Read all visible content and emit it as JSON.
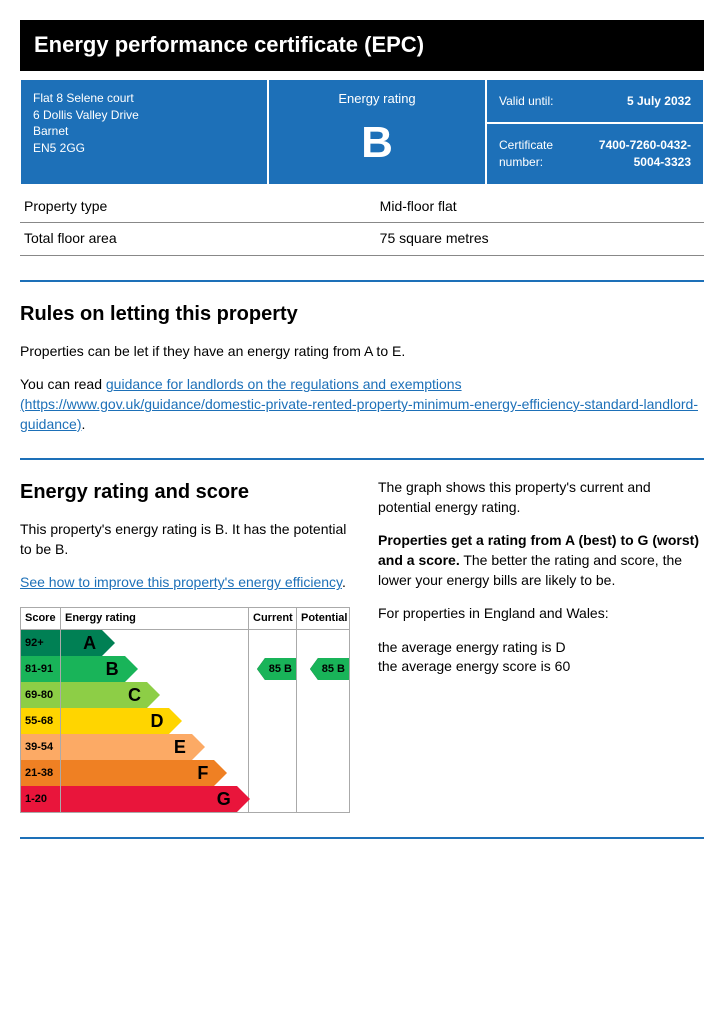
{
  "title": "Energy performance certificate (EPC)",
  "header": {
    "address_lines": [
      "Flat 8 Selene court",
      "6 Dollis Valley Drive",
      "Barnet",
      "EN5 2GG"
    ],
    "rating_label": "Energy rating",
    "rating_letter": "B",
    "valid_label": "Valid until:",
    "valid_value": "5 July 2032",
    "cert_label": "Certificate number:",
    "cert_value": "7400-7260-0432-5004-3323"
  },
  "property": {
    "type_label": "Property type",
    "type_value": "Mid-floor flat",
    "area_label": "Total floor area",
    "area_value": "75 square metres"
  },
  "rules": {
    "heading": "Rules on letting this property",
    "intro": "Properties can be let if they have an energy rating from A to E.",
    "link_prefix": "You can read ",
    "link_text": "guidance for landlords on the regulations and exemptions (https://www.gov.uk/guidance/domestic-private-rented-property-minimum-energy-efficiency-standard-landlord-guidance)",
    "link_suffix": "."
  },
  "rating_section": {
    "heading": "Energy rating and score",
    "summary": "This property's energy rating is B. It has the potential to be B.",
    "improve_link": "See how to improve this property's energy efficiency",
    "improve_suffix": "."
  },
  "side_text": {
    "p1": "The graph shows this property's current and potential energy rating.",
    "p2_bold": "Properties get a rating from A (best) to G (worst) and a score.",
    "p2_rest": " The better the rating and score, the lower your energy bills are likely to be.",
    "p3": "For properties in England and Wales:",
    "p4a": "the average energy rating is D",
    "p4b": "the average energy score is 60"
  },
  "chart": {
    "headers": {
      "score": "Score",
      "rating": "Energy rating",
      "current": "Current",
      "potential": "Potential"
    },
    "rows": [
      {
        "score": "92+",
        "letter": "A",
        "width_pct": 22,
        "color": "#008054",
        "text_color": "#000"
      },
      {
        "score": "81-91",
        "letter": "B",
        "width_pct": 34,
        "color": "#19b459",
        "text_color": "#000"
      },
      {
        "score": "69-80",
        "letter": "C",
        "width_pct": 46,
        "color": "#8dce46",
        "text_color": "#000"
      },
      {
        "score": "55-68",
        "letter": "D",
        "width_pct": 58,
        "color": "#ffd500",
        "text_color": "#000"
      },
      {
        "score": "39-54",
        "letter": "E",
        "width_pct": 70,
        "color": "#fcaa65",
        "text_color": "#000"
      },
      {
        "score": "21-38",
        "letter": "F",
        "width_pct": 82,
        "color": "#ef8023",
        "text_color": "#000"
      },
      {
        "score": "1-20",
        "letter": "G",
        "width_pct": 94,
        "color": "#e9153b",
        "text_color": "#000"
      }
    ],
    "current": {
      "row_letter": "B",
      "label": "85  B",
      "color": "#19b459"
    },
    "potential": {
      "row_letter": "B",
      "label": "85  B",
      "color": "#19b459"
    }
  },
  "colors": {
    "gov_blue": "#1d70b8"
  }
}
